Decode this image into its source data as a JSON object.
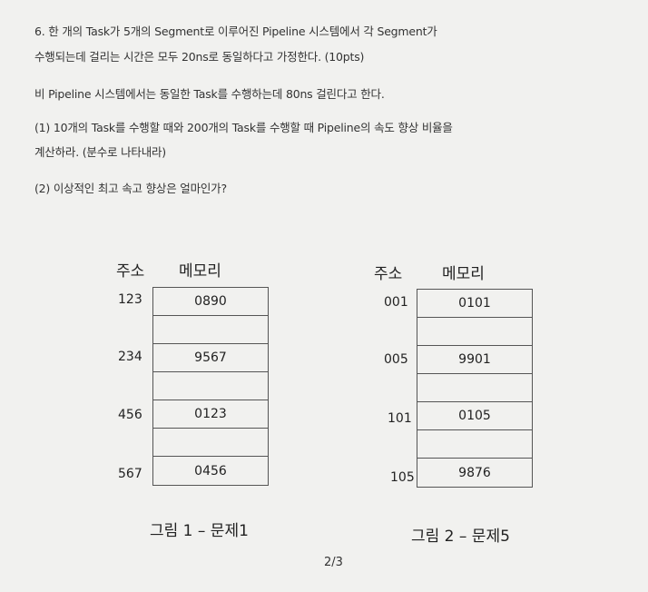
{
  "question": {
    "line1": "6. 한 개의 Task가 5개의 Segment로 이루어진 Pipeline 시스템에서 각 Segment가",
    "line2": "수행되는데 걸리는 시간은 모두 20ns로 동일하다고 가정한다. (10pts)",
    "line3": "비 Pipeline 시스템에서는 동일한 Task를 수행하는데 80ns 걸린다고 한다.",
    "line4": "(1) 10개의 Task를 수행할 때와 200개의 Task를 수행할 때 Pipeline의 속도 향상 비율을",
    "line5": "계산하라. (분수로 나타내라)",
    "line6": "(2) 이상적인 최고 속고 향상은 얼마인가?"
  },
  "figure1": {
    "addr_header": "주소",
    "mem_header": "메모리",
    "addresses": [
      "123",
      "234",
      "456",
      "567"
    ],
    "cells": [
      "0890",
      "",
      "9567",
      "",
      "0123",
      "",
      "0456"
    ],
    "caption": "그림 1 – 문제1"
  },
  "figure2": {
    "addr_header": "주소",
    "mem_header": "메모리",
    "addresses": [
      "001",
      "005",
      "101",
      "105"
    ],
    "cells": [
      "0101",
      "",
      "9901",
      "",
      "0105",
      "",
      "9876"
    ],
    "caption": "그림 2 – 문제5"
  },
  "page_number": "2/3"
}
